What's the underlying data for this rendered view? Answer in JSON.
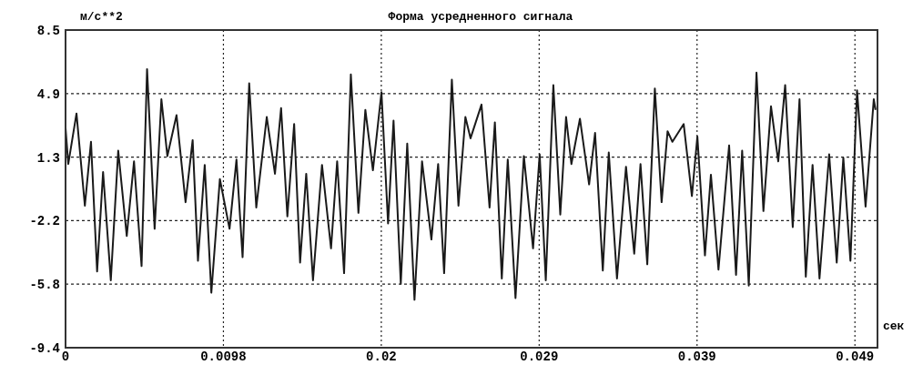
{
  "chart_data": {
    "type": "line",
    "title": "Форма усредненного сигнала",
    "ylabel": "м/с**2",
    "xlabel": "сек",
    "xlim": [
      0,
      0.0504
    ],
    "ylim": [
      -9.4,
      8.5
    ],
    "xticks": [
      0,
      {
        "value": 0.0098,
        "label": "0.0098"
      },
      {
        "value": 0.0196,
        "label": "0.02"
      },
      {
        "value": 0.0294,
        "label": "0.029"
      },
      {
        "value": 0.0392,
        "label": "0.039"
      },
      {
        "value": 0.049,
        "label": "0.049"
      }
    ],
    "yticks": [
      -9.4,
      {
        "value": -5.82,
        "label": "-5.8"
      },
      {
        "value": -2.24,
        "label": "-2.2"
      },
      {
        "value": 1.34,
        "label": "1.3"
      },
      {
        "value": 4.92,
        "label": "4.9"
      },
      8.5
    ],
    "grid": true,
    "line_style": "solid",
    "marker": "none",
    "series": [
      {
        "color": "#1a1a1a",
        "x": [
          0,
          0.00017,
          0.00068,
          0.0012,
          0.00158,
          0.00196,
          0.00233,
          0.00281,
          0.00327,
          0.0038,
          0.00425,
          0.00472,
          0.00506,
          0.00553,
          0.00595,
          0.00632,
          0.00689,
          0.00745,
          0.00789,
          0.00822,
          0.00864,
          0.00905,
          0.00958,
          0.01018,
          0.01061,
          0.01099,
          0.0114,
          0.01184,
          0.01249,
          0.013,
          0.01338,
          0.01377,
          0.01419,
          0.01456,
          0.01494,
          0.01536,
          0.01592,
          0.01648,
          0.01686,
          0.01729,
          0.01771,
          0.01818,
          0.01861,
          0.01908,
          0.01961,
          0.02002,
          0.02036,
          0.02081,
          0.02121,
          0.02166,
          0.02213,
          0.02271,
          0.02313,
          0.0235,
          0.02398,
          0.02439,
          0.02482,
          0.02514,
          0.02582,
          0.02632,
          0.02665,
          0.02708,
          0.02745,
          0.02793,
          0.02845,
          0.02902,
          0.02943,
          0.02981,
          0.03028,
          0.03071,
          0.03107,
          0.0314,
          0.03193,
          0.0325,
          0.03287,
          0.03335,
          0.03372,
          0.03423,
          0.03479,
          0.0353,
          0.03569,
          0.03611,
          0.03658,
          0.037,
          0.03737,
          0.03767,
          0.03837,
          0.03888,
          0.03922,
          0.03969,
          0.04006,
          0.04053,
          0.04119,
          0.04162,
          0.042,
          0.04241,
          0.04289,
          0.04332,
          0.04379,
          0.04424,
          0.04467,
          0.04514,
          0.04556,
          0.04595,
          0.04637,
          0.0468,
          0.0474,
          0.04787,
          0.04828,
          0.04872,
          0.04913,
          0.04966,
          0.05017,
          0.05028
        ],
        "values": [
          3.0,
          0.95,
          3.8,
          -1.4,
          2.2,
          -5.1,
          0.5,
          -5.6,
          1.7,
          -3.1,
          1.1,
          -4.8,
          6.3,
          -2.7,
          4.6,
          1.4,
          3.7,
          -1.2,
          2.3,
          -4.5,
          0.9,
          -6.3,
          0.1,
          -2.7,
          1.2,
          -4.3,
          5.5,
          -1.5,
          3.6,
          0.4,
          4.1,
          -2.0,
          3.2,
          -4.6,
          0.4,
          -5.6,
          0.9,
          -3.8,
          1.1,
          -5.2,
          6.0,
          -1.8,
          4.0,
          0.6,
          5.0,
          -2.4,
          3.4,
          -5.8,
          2.1,
          -6.7,
          1.1,
          -3.3,
          0.95,
          -5.2,
          5.7,
          -1.4,
          3.6,
          2.4,
          4.3,
          -1.5,
          3.3,
          -5.5,
          1.2,
          -6.6,
          1.4,
          -3.8,
          1.5,
          -5.6,
          5.4,
          -1.9,
          3.6,
          0.95,
          3.5,
          -0.2,
          2.7,
          -5.05,
          1.6,
          -5.5,
          0.8,
          -4.1,
          0.95,
          -4.7,
          5.2,
          -1.2,
          2.8,
          2.2,
          3.2,
          -0.85,
          2.5,
          -4.2,
          0.35,
          -5.0,
          2.0,
          -5.3,
          1.7,
          -5.9,
          6.1,
          -1.7,
          4.2,
          1.1,
          5.4,
          -2.6,
          4.6,
          -5.4,
          0.9,
          -5.5,
          1.5,
          -4.6,
          1.3,
          -4.5,
          5.1,
          -1.45,
          4.6,
          4.0
        ]
      }
    ]
  }
}
